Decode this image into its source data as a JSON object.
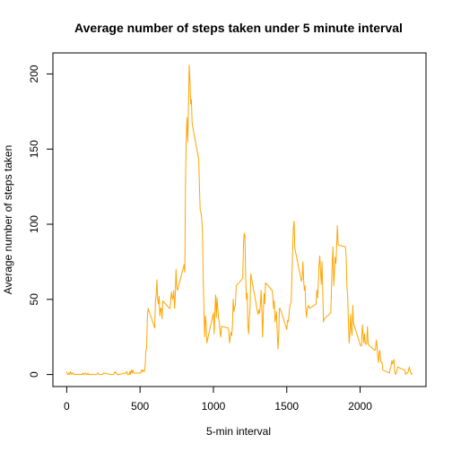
{
  "chart_data": {
    "type": "line",
    "title": "Average number of steps taken under 5 minute interval",
    "xlabel": "5-min interval",
    "ylabel": "Average number of steps taken",
    "xlim": [
      -94,
      2449
    ],
    "ylim": [
      -8,
      214
    ],
    "xticks": [
      0,
      500,
      1000,
      1500,
      2000
    ],
    "yticks": [
      0,
      50,
      100,
      150,
      200
    ],
    "grid": false,
    "series": [
      {
        "color": "#FFA500",
        "points": [
          [
            0,
            2
          ],
          [
            5,
            0
          ],
          [
            10,
            0
          ],
          [
            15,
            1
          ],
          [
            20,
            0
          ],
          [
            25,
            2
          ],
          [
            30,
            1
          ],
          [
            35,
            0
          ],
          [
            40,
            1
          ],
          [
            45,
            1
          ],
          [
            50,
            0
          ],
          [
            55,
            0
          ],
          [
            100,
            0
          ],
          [
            105,
            0
          ],
          [
            110,
            1
          ],
          [
            115,
            0
          ],
          [
            120,
            0
          ],
          [
            125,
            1
          ],
          [
            130,
            1
          ],
          [
            135,
            0
          ],
          [
            140,
            0
          ],
          [
            145,
            1
          ],
          [
            150,
            0
          ],
          [
            155,
            0
          ],
          [
            200,
            0
          ],
          [
            205,
            0
          ],
          [
            210,
            1
          ],
          [
            215,
            1
          ],
          [
            220,
            0
          ],
          [
            225,
            0
          ],
          [
            230,
            0
          ],
          [
            235,
            0
          ],
          [
            240,
            0
          ],
          [
            245,
            0
          ],
          [
            250,
            1
          ],
          [
            255,
            1
          ],
          [
            300,
            0
          ],
          [
            305,
            0
          ],
          [
            310,
            0
          ],
          [
            315,
            0
          ],
          [
            320,
            0
          ],
          [
            325,
            1
          ],
          [
            330,
            2
          ],
          [
            335,
            1
          ],
          [
            340,
            1
          ],
          [
            345,
            0
          ],
          [
            350,
            0
          ],
          [
            355,
            0
          ],
          [
            400,
            1
          ],
          [
            405,
            1
          ],
          [
            410,
            2
          ],
          [
            415,
            0
          ],
          [
            420,
            0
          ],
          [
            425,
            0
          ],
          [
            430,
            2
          ],
          [
            435,
            0
          ],
          [
            440,
            3
          ],
          [
            445,
            1
          ],
          [
            450,
            3
          ],
          [
            455,
            1
          ],
          [
            500,
            1
          ],
          [
            505,
            1
          ],
          [
            510,
            3
          ],
          [
            515,
            2
          ],
          [
            520,
            3
          ],
          [
            525,
            2
          ],
          [
            530,
            2
          ],
          [
            535,
            6
          ],
          [
            540,
            16
          ],
          [
            545,
            18
          ],
          [
            550,
            39
          ],
          [
            555,
            44
          ],
          [
            600,
            31
          ],
          [
            605,
            49
          ],
          [
            610,
            53
          ],
          [
            615,
            63
          ],
          [
            620,
            50
          ],
          [
            625,
            47
          ],
          [
            630,
            52
          ],
          [
            635,
            39
          ],
          [
            640,
            44
          ],
          [
            645,
            44
          ],
          [
            650,
            37
          ],
          [
            655,
            49
          ],
          [
            700,
            44
          ],
          [
            705,
            44
          ],
          [
            710,
            51
          ],
          [
            715,
            55
          ],
          [
            720,
            50
          ],
          [
            725,
            51
          ],
          [
            730,
            56
          ],
          [
            735,
            44
          ],
          [
            740,
            52
          ],
          [
            745,
            70
          ],
          [
            750,
            58
          ],
          [
            755,
            56
          ],
          [
            800,
            73
          ],
          [
            805,
            68
          ],
          [
            810,
            129
          ],
          [
            815,
            158
          ],
          [
            820,
            171
          ],
          [
            825,
            155
          ],
          [
            830,
            177
          ],
          [
            835,
            206
          ],
          [
            840,
            196
          ],
          [
            845,
            180
          ],
          [
            850,
            183
          ],
          [
            855,
            167
          ],
          [
            900,
            143
          ],
          [
            905,
            124
          ],
          [
            910,
            109
          ],
          [
            915,
            108
          ],
          [
            920,
            104
          ],
          [
            925,
            96
          ],
          [
            930,
            66
          ],
          [
            935,
            45
          ],
          [
            940,
            25
          ],
          [
            945,
            39
          ],
          [
            950,
            35
          ],
          [
            955,
            21
          ],
          [
            1000,
            41
          ],
          [
            1005,
            27
          ],
          [
            1010,
            42
          ],
          [
            1015,
            53
          ],
          [
            1020,
            38
          ],
          [
            1025,
            51
          ],
          [
            1030,
            44
          ],
          [
            1035,
            37
          ],
          [
            1040,
            35
          ],
          [
            1045,
            28
          ],
          [
            1050,
            25
          ],
          [
            1055,
            32
          ],
          [
            1100,
            31
          ],
          [
            1105,
            29
          ],
          [
            1110,
            21
          ],
          [
            1115,
            25
          ],
          [
            1120,
            28
          ],
          [
            1125,
            26
          ],
          [
            1130,
            33
          ],
          [
            1135,
            50
          ],
          [
            1140,
            42
          ],
          [
            1145,
            45
          ],
          [
            1150,
            46
          ],
          [
            1155,
            59
          ],
          [
            1200,
            64
          ],
          [
            1205,
            87
          ],
          [
            1210,
            94
          ],
          [
            1215,
            92
          ],
          [
            1220,
            63
          ],
          [
            1225,
            50
          ],
          [
            1230,
            54
          ],
          [
            1235,
            32
          ],
          [
            1240,
            27
          ],
          [
            1245,
            38
          ],
          [
            1250,
            45
          ],
          [
            1255,
            67
          ],
          [
            1300,
            42
          ],
          [
            1305,
            40
          ],
          [
            1310,
            43
          ],
          [
            1315,
            41
          ],
          [
            1320,
            46
          ],
          [
            1325,
            56
          ],
          [
            1330,
            43
          ],
          [
            1335,
            25
          ],
          [
            1340,
            40
          ],
          [
            1345,
            54
          ],
          [
            1350,
            47
          ],
          [
            1355,
            61
          ],
          [
            1400,
            56
          ],
          [
            1405,
            52
          ],
          [
            1410,
            44
          ],
          [
            1415,
            49
          ],
          [
            1420,
            35
          ],
          [
            1425,
            38
          ],
          [
            1430,
            42
          ],
          [
            1435,
            28
          ],
          [
            1440,
            17
          ],
          [
            1445,
            26
          ],
          [
            1450,
            44
          ],
          [
            1455,
            44
          ],
          [
            1500,
            30
          ],
          [
            1505,
            36
          ],
          [
            1510,
            35
          ],
          [
            1515,
            39
          ],
          [
            1520,
            45
          ],
          [
            1525,
            47
          ],
          [
            1530,
            48
          ],
          [
            1535,
            65
          ],
          [
            1540,
            82
          ],
          [
            1545,
            98
          ],
          [
            1550,
            102
          ],
          [
            1555,
            84
          ],
          [
            1600,
            62
          ],
          [
            1605,
            64
          ],
          [
            1610,
            75
          ],
          [
            1615,
            63
          ],
          [
            1620,
            56
          ],
          [
            1625,
            59
          ],
          [
            1630,
            43
          ],
          [
            1635,
            38
          ],
          [
            1640,
            44
          ],
          [
            1645,
            45
          ],
          [
            1650,
            46
          ],
          [
            1655,
            44
          ],
          [
            1700,
            47
          ],
          [
            1705,
            56
          ],
          [
            1710,
            51
          ],
          [
            1715,
            61
          ],
          [
            1720,
            73
          ],
          [
            1725,
            79
          ],
          [
            1730,
            69
          ],
          [
            1735,
            60
          ],
          [
            1740,
            75
          ],
          [
            1745,
            57
          ],
          [
            1750,
            35
          ],
          [
            1755,
            37
          ],
          [
            1800,
            41
          ],
          [
            1805,
            58
          ],
          [
            1810,
            75
          ],
          [
            1815,
            85
          ],
          [
            1820,
            59
          ],
          [
            1825,
            68
          ],
          [
            1830,
            78
          ],
          [
            1835,
            74
          ],
          [
            1840,
            85
          ],
          [
            1845,
            99
          ],
          [
            1850,
            87
          ],
          [
            1855,
            86
          ],
          [
            1900,
            85
          ],
          [
            1905,
            78
          ],
          [
            1910,
            58
          ],
          [
            1915,
            53
          ],
          [
            1920,
            36
          ],
          [
            1925,
            21
          ],
          [
            1930,
            27
          ],
          [
            1935,
            40
          ],
          [
            1940,
            30
          ],
          [
            1945,
            26
          ],
          [
            1950,
            46
          ],
          [
            1955,
            34
          ],
          [
            2000,
            20
          ],
          [
            2005,
            19
          ],
          [
            2010,
            19
          ],
          [
            2015,
            33
          ],
          [
            2020,
            27
          ],
          [
            2025,
            21
          ],
          [
            2030,
            27
          ],
          [
            2035,
            21
          ],
          [
            2040,
            20
          ],
          [
            2045,
            21
          ],
          [
            2050,
            32
          ],
          [
            2055,
            20
          ],
          [
            2100,
            16
          ],
          [
            2105,
            17
          ],
          [
            2110,
            23
          ],
          [
            2115,
            19
          ],
          [
            2120,
            12
          ],
          [
            2125,
            8
          ],
          [
            2130,
            15
          ],
          [
            2135,
            16
          ],
          [
            2140,
            9
          ],
          [
            2145,
            8
          ],
          [
            2150,
            8
          ],
          [
            2155,
            3
          ],
          [
            2200,
            1
          ],
          [
            2205,
            4
          ],
          [
            2210,
            5
          ],
          [
            2215,
            9
          ],
          [
            2220,
            7
          ],
          [
            2225,
            9
          ],
          [
            2230,
            10
          ],
          [
            2235,
            2
          ],
          [
            2240,
            0
          ],
          [
            2245,
            1
          ],
          [
            2250,
            2
          ],
          [
            2255,
            5
          ],
          [
            2300,
            3
          ],
          [
            2305,
            3
          ],
          [
            2310,
            0
          ],
          [
            2315,
            1
          ],
          [
            2320,
            1
          ],
          [
            2325,
            1
          ],
          [
            2330,
            3
          ],
          [
            2335,
            5
          ],
          [
            2340,
            3
          ],
          [
            2345,
            1
          ],
          [
            2350,
            0
          ],
          [
            2355,
            1
          ]
        ]
      }
    ]
  }
}
